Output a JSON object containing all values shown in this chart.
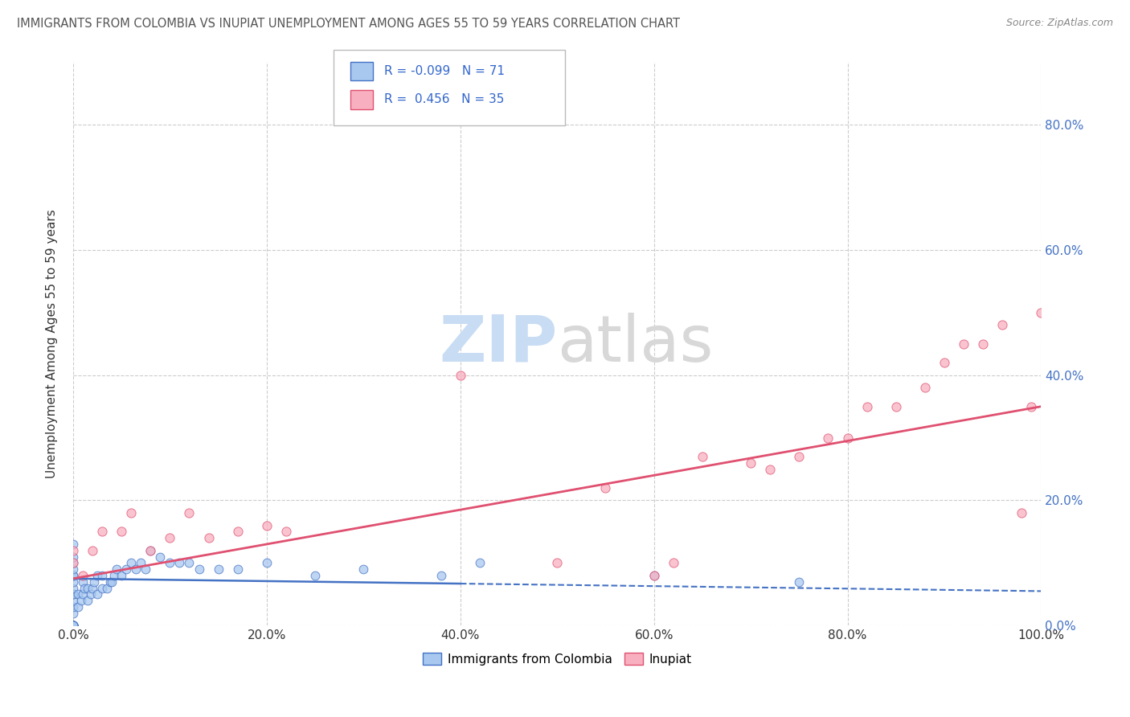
{
  "title": "IMMIGRANTS FROM COLOMBIA VS INUPIAT UNEMPLOYMENT AMONG AGES 55 TO 59 YEARS CORRELATION CHART",
  "source": "Source: ZipAtlas.com",
  "ylabel": "Unemployment Among Ages 55 to 59 years",
  "legend_label_1": "Immigrants from Colombia",
  "legend_label_2": "Inupiat",
  "R1": -0.099,
  "N1": 71,
  "R2": 0.456,
  "N2": 35,
  "color1": "#A8C8F0",
  "color2": "#F8B0C0",
  "trendline1_color": "#4472C4",
  "trendline2_color": "#E05070",
  "xlim": [
    0.0,
    1.0
  ],
  "ylim": [
    0.0,
    0.9
  ],
  "xtick_labels": [
    "0.0%",
    "20.0%",
    "40.0%",
    "60.0%",
    "80.0%",
    "100.0%"
  ],
  "xtick_vals": [
    0.0,
    0.2,
    0.4,
    0.6,
    0.8,
    1.0
  ],
  "ytick_labels_right": [
    "0.0%",
    "20.0%",
    "40.0%",
    "60.0%",
    "80.0%"
  ],
  "ytick_vals_right": [
    0.0,
    0.2,
    0.4,
    0.6,
    0.8
  ],
  "grid_color": "#CCCCCC",
  "background_color": "#FFFFFF",
  "colombia_x": [
    0.0,
    0.0,
    0.0,
    0.0,
    0.0,
    0.0,
    0.0,
    0.0,
    0.0,
    0.0,
    0.0,
    0.0,
    0.0,
    0.0,
    0.0,
    0.0,
    0.0,
    0.0,
    0.0,
    0.0,
    0.0,
    0.0,
    0.0,
    0.0,
    0.0,
    0.0,
    0.0,
    0.0,
    0.0,
    0.0,
    0.005,
    0.005,
    0.008,
    0.01,
    0.01,
    0.012,
    0.015,
    0.015,
    0.018,
    0.02,
    0.022,
    0.025,
    0.025,
    0.03,
    0.03,
    0.035,
    0.038,
    0.04,
    0.042,
    0.045,
    0.05,
    0.055,
    0.06,
    0.065,
    0.07,
    0.075,
    0.08,
    0.09,
    0.1,
    0.11,
    0.12,
    0.13,
    0.15,
    0.17,
    0.2,
    0.25,
    0.3,
    0.38,
    0.42,
    0.6,
    0.75
  ],
  "colombia_y": [
    0.0,
    0.0,
    0.0,
    0.0,
    0.0,
    0.0,
    0.0,
    0.0,
    0.0,
    0.0,
    0.0,
    0.0,
    0.0,
    0.0,
    0.0,
    0.0,
    0.0,
    0.02,
    0.03,
    0.04,
    0.05,
    0.05,
    0.06,
    0.07,
    0.08,
    0.08,
    0.09,
    0.1,
    0.11,
    0.13,
    0.03,
    0.05,
    0.04,
    0.05,
    0.07,
    0.06,
    0.04,
    0.06,
    0.05,
    0.06,
    0.07,
    0.08,
    0.05,
    0.06,
    0.08,
    0.06,
    0.07,
    0.07,
    0.08,
    0.09,
    0.08,
    0.09,
    0.1,
    0.09,
    0.1,
    0.09,
    0.12,
    0.11,
    0.1,
    0.1,
    0.1,
    0.09,
    0.09,
    0.09,
    0.1,
    0.08,
    0.09,
    0.08,
    0.1,
    0.08,
    0.07
  ],
  "inupiat_x": [
    0.0,
    0.0,
    0.01,
    0.02,
    0.03,
    0.05,
    0.06,
    0.08,
    0.1,
    0.12,
    0.14,
    0.17,
    0.2,
    0.22,
    0.4,
    0.5,
    0.55,
    0.6,
    0.62,
    0.65,
    0.7,
    0.72,
    0.75,
    0.78,
    0.8,
    0.82,
    0.85,
    0.88,
    0.9,
    0.92,
    0.94,
    0.96,
    0.98,
    0.99,
    1.0
  ],
  "inupiat_y": [
    0.1,
    0.12,
    0.08,
    0.12,
    0.15,
    0.15,
    0.18,
    0.12,
    0.14,
    0.18,
    0.14,
    0.15,
    0.16,
    0.15,
    0.4,
    0.1,
    0.22,
    0.08,
    0.1,
    0.27,
    0.26,
    0.25,
    0.27,
    0.3,
    0.3,
    0.35,
    0.35,
    0.38,
    0.42,
    0.45,
    0.45,
    0.48,
    0.18,
    0.35,
    0.5
  ],
  "trendline1_solid_end": 0.4,
  "trendline1_start_y": 0.075,
  "trendline1_end_y": 0.055,
  "trendline2_start_y": 0.075,
  "trendline2_end_y": 0.35
}
